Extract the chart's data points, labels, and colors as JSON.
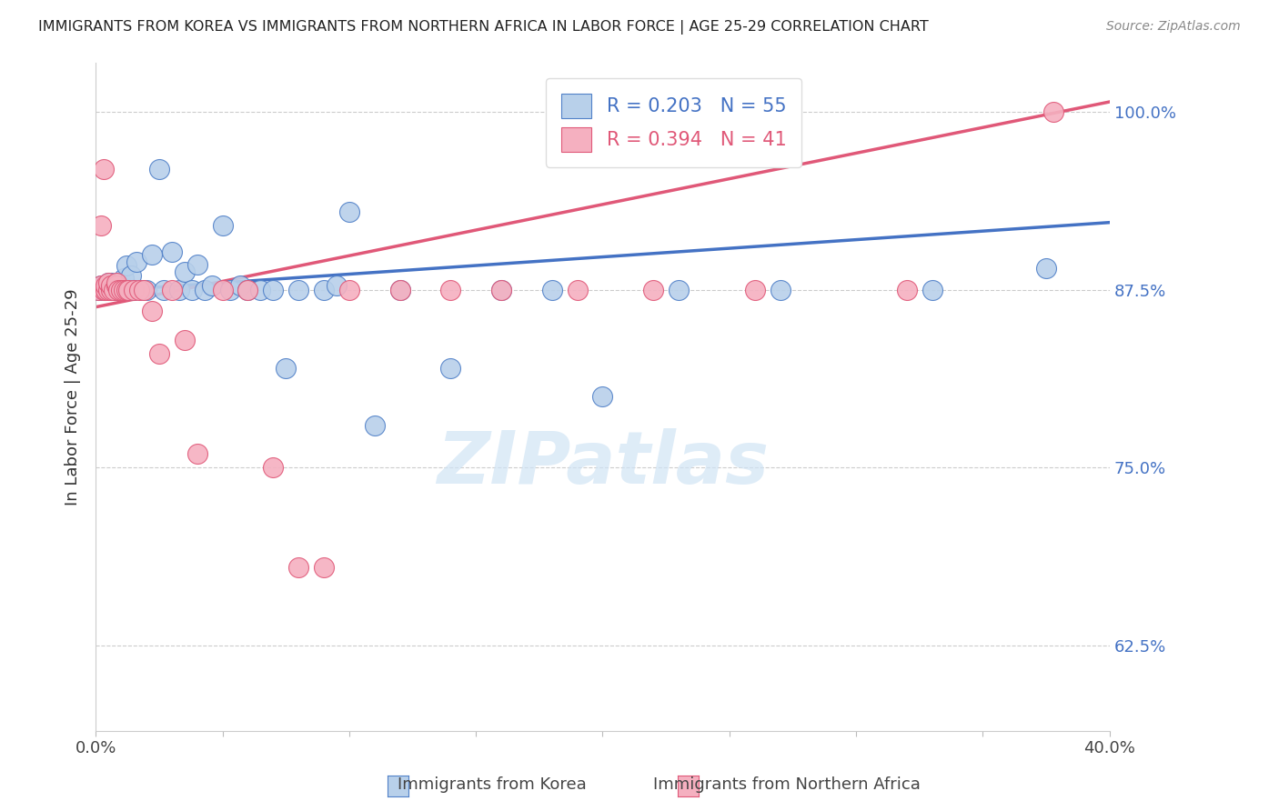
{
  "title": "IMMIGRANTS FROM KOREA VS IMMIGRANTS FROM NORTHERN AFRICA IN LABOR FORCE | AGE 25-29 CORRELATION CHART",
  "source": "Source: ZipAtlas.com",
  "ylabel": "In Labor Force | Age 25-29",
  "ytick_vals": [
    1.0,
    0.875,
    0.75,
    0.625
  ],
  "ytick_labels": [
    "100.0%",
    "87.5%",
    "75.0%",
    "62.5%"
  ],
  "xlim": [
    0.0,
    0.4
  ],
  "ylim": [
    0.565,
    1.035
  ],
  "korea_R": 0.203,
  "korea_N": 55,
  "africa_R": 0.394,
  "africa_N": 41,
  "korea_color": "#b8d0ea",
  "africa_color": "#f5b0c0",
  "korea_edge_color": "#5080c8",
  "africa_edge_color": "#e05878",
  "korea_line_color": "#4472c4",
  "africa_line_color": "#e05878",
  "watermark_color": "#d0e4f5",
  "korea_x": [
    0.001,
    0.002,
    0.002,
    0.003,
    0.003,
    0.004,
    0.004,
    0.005,
    0.005,
    0.006,
    0.006,
    0.007,
    0.007,
    0.008,
    0.009,
    0.01,
    0.011,
    0.012,
    0.013,
    0.014,
    0.015,
    0.016,
    0.018,
    0.02,
    0.022,
    0.025,
    0.027,
    0.03,
    0.033,
    0.035,
    0.038,
    0.04,
    0.043,
    0.046,
    0.05,
    0.053,
    0.057,
    0.06,
    0.065,
    0.07,
    0.075,
    0.08,
    0.09,
    0.095,
    0.1,
    0.11,
    0.12,
    0.14,
    0.16,
    0.18,
    0.2,
    0.23,
    0.27,
    0.33,
    0.375
  ],
  "korea_y": [
    0.875,
    0.875,
    0.878,
    0.875,
    0.878,
    0.875,
    0.878,
    0.875,
    0.88,
    0.875,
    0.88,
    0.875,
    0.878,
    0.875,
    0.88,
    0.88,
    0.883,
    0.892,
    0.875,
    0.885,
    0.875,
    0.895,
    0.875,
    0.875,
    0.9,
    0.96,
    0.875,
    0.902,
    0.875,
    0.888,
    0.875,
    0.893,
    0.875,
    0.878,
    0.92,
    0.875,
    0.878,
    0.875,
    0.875,
    0.875,
    0.82,
    0.875,
    0.875,
    0.878,
    0.93,
    0.78,
    0.875,
    0.82,
    0.875,
    0.875,
    0.8,
    0.875,
    0.875,
    0.875,
    0.89
  ],
  "africa_x": [
    0.001,
    0.002,
    0.002,
    0.003,
    0.003,
    0.004,
    0.004,
    0.005,
    0.005,
    0.006,
    0.006,
    0.007,
    0.008,
    0.008,
    0.009,
    0.01,
    0.011,
    0.012,
    0.013,
    0.015,
    0.017,
    0.019,
    0.022,
    0.025,
    0.03,
    0.035,
    0.04,
    0.05,
    0.06,
    0.07,
    0.08,
    0.09,
    0.1,
    0.12,
    0.14,
    0.16,
    0.19,
    0.22,
    0.26,
    0.32,
    0.378
  ],
  "africa_y": [
    0.875,
    0.878,
    0.92,
    0.875,
    0.96,
    0.875,
    0.878,
    0.875,
    0.88,
    0.875,
    0.878,
    0.875,
    0.878,
    0.88,
    0.875,
    0.875,
    0.875,
    0.875,
    0.875,
    0.875,
    0.875,
    0.875,
    0.86,
    0.83,
    0.875,
    0.84,
    0.76,
    0.875,
    0.875,
    0.75,
    0.68,
    0.68,
    0.875,
    0.875,
    0.875,
    0.875,
    0.875,
    0.875,
    0.875,
    0.875,
    1.0
  ]
}
